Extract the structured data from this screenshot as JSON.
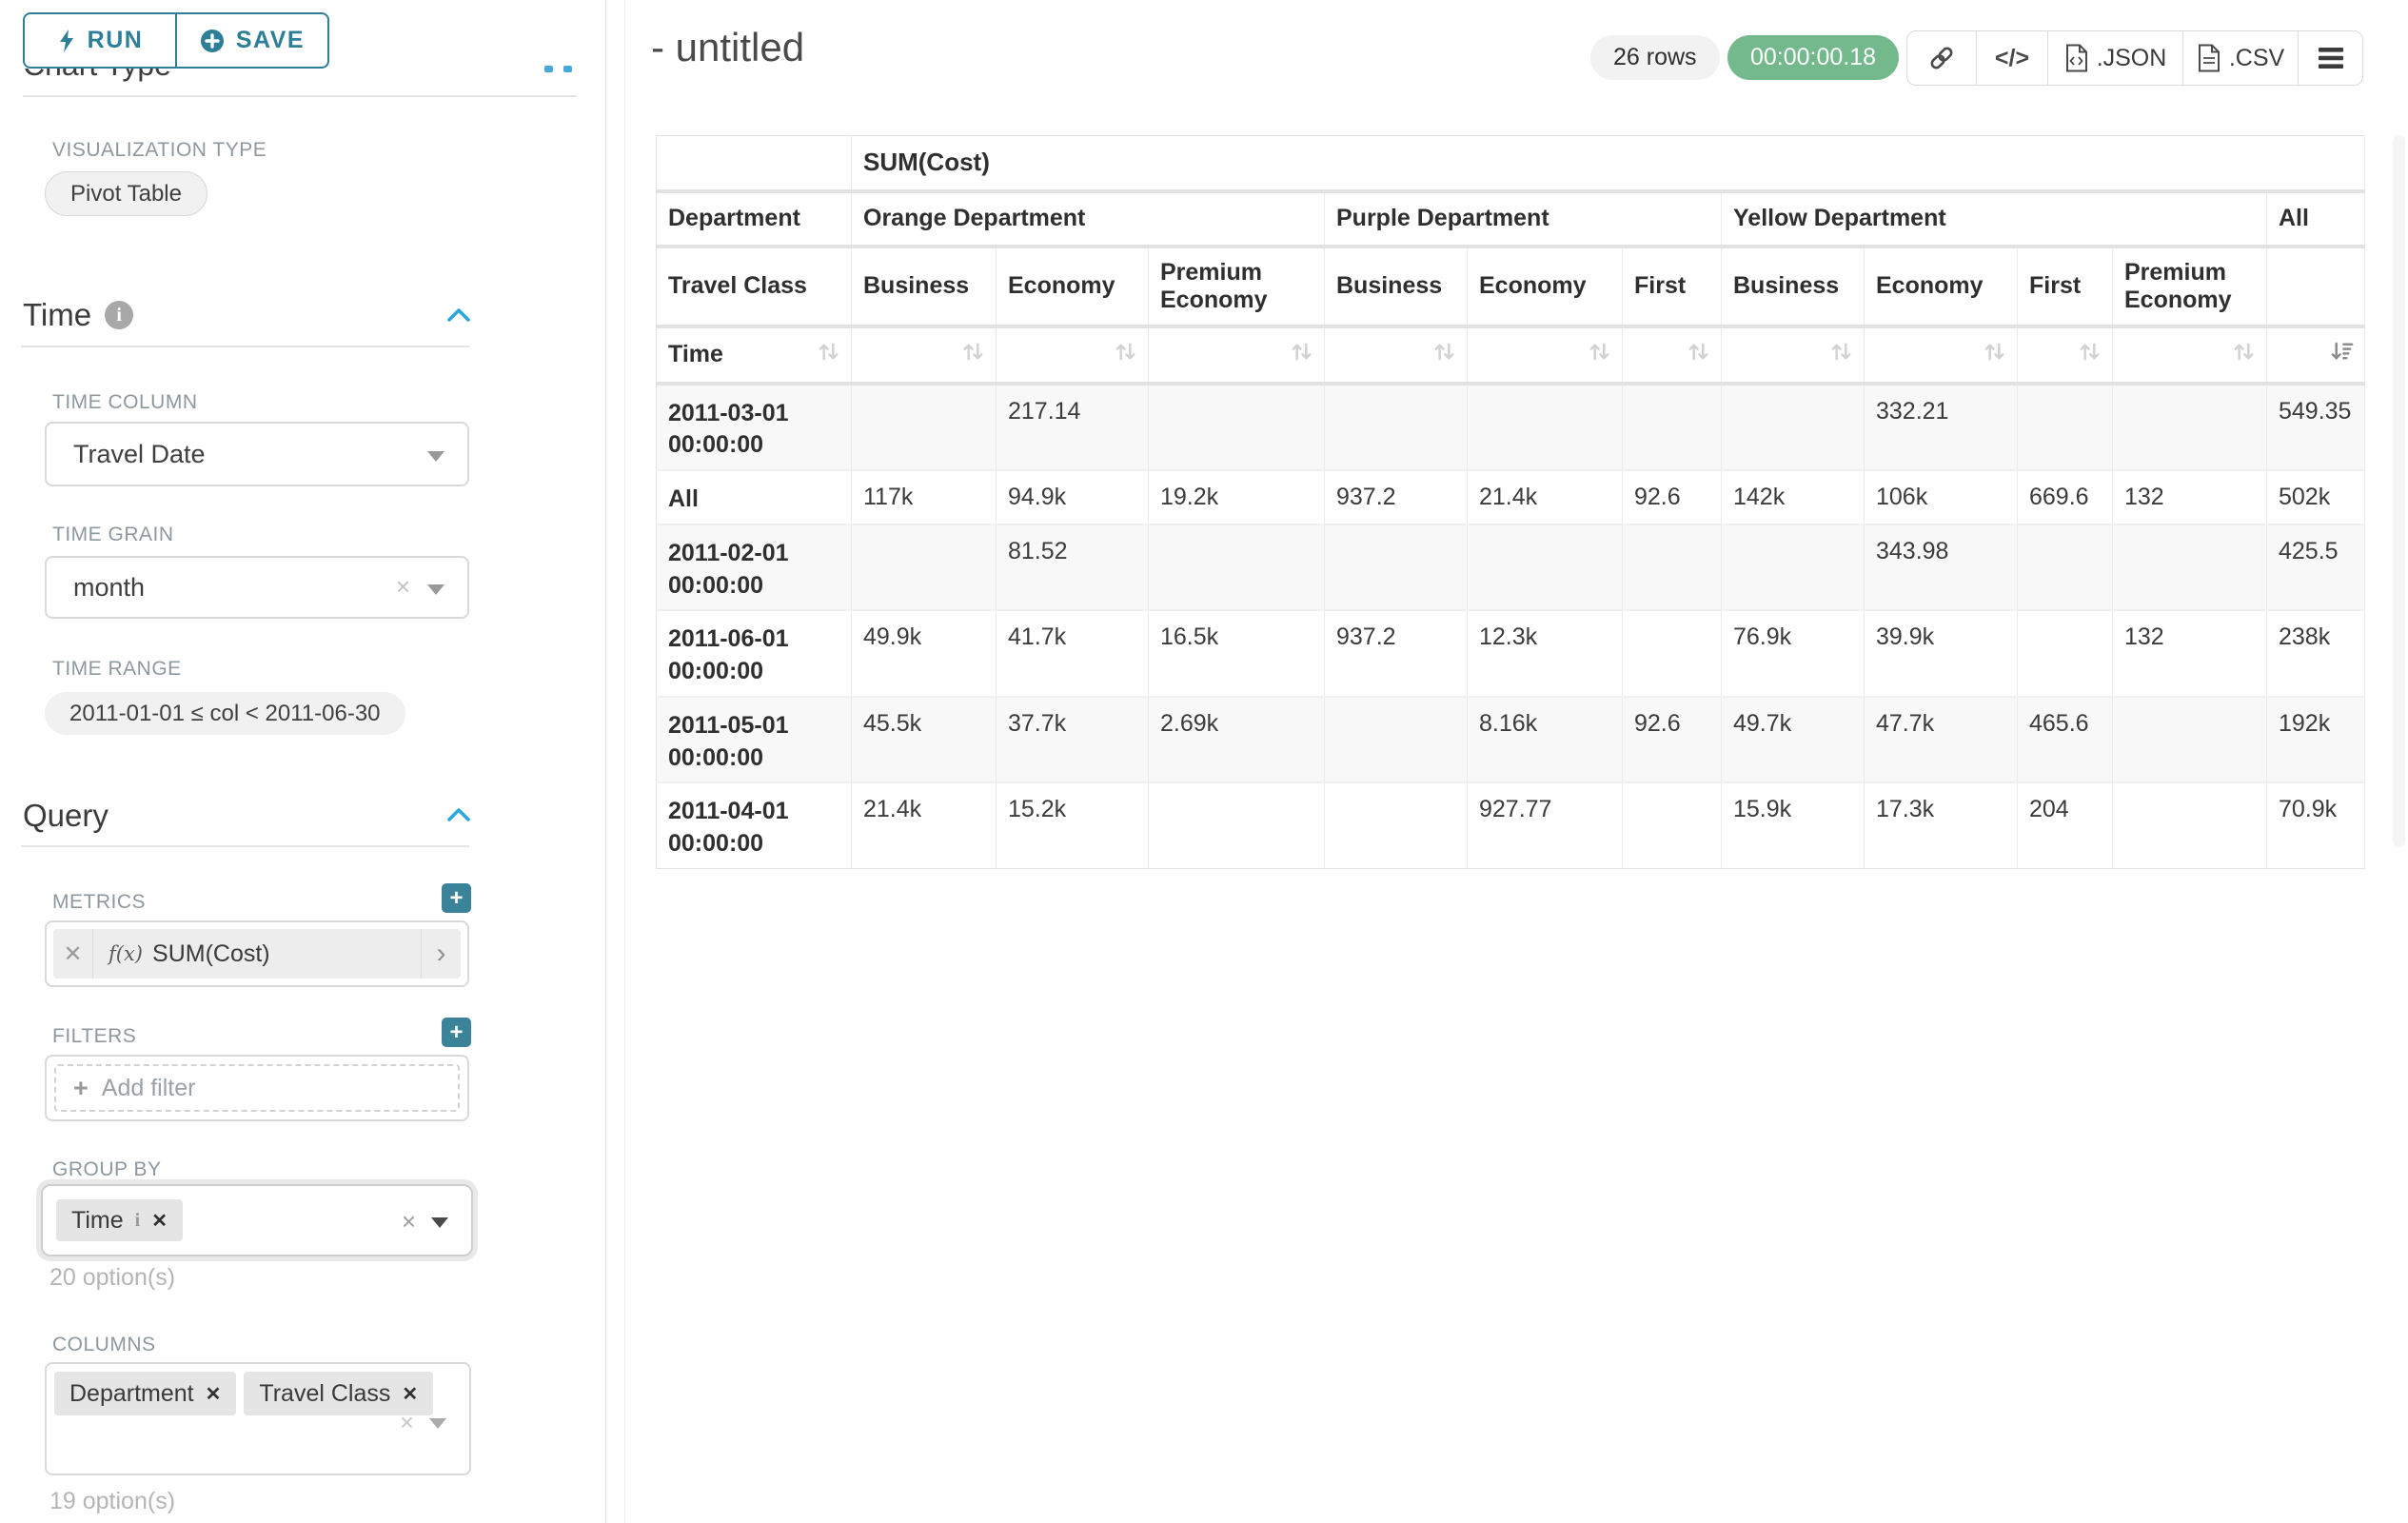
{
  "colors": {
    "accent_teal": "#2e7e97",
    "plus_button": "#3a8399",
    "chevron_blue": "#2ba7dc",
    "timer_green": "#73b98c",
    "stripe_gray": "#f8f8f8"
  },
  "sidebar": {
    "run_button": {
      "label": "RUN"
    },
    "save_button": {
      "label": "SAVE"
    },
    "chart_type_section": {
      "title": "Chart Type"
    },
    "visualization_type": {
      "label": "VISUALIZATION TYPE",
      "value": "Pivot Table"
    },
    "time_section": {
      "title": "Time"
    },
    "time_column": {
      "label": "TIME COLUMN",
      "value": "Travel Date"
    },
    "time_grain": {
      "label": "TIME GRAIN",
      "value": "month"
    },
    "time_range": {
      "label": "TIME RANGE",
      "value": "2011-01-01 ≤ col < 2011-06-30"
    },
    "query_section": {
      "title": "Query"
    },
    "metrics": {
      "label": "METRICS",
      "fx": "f(x)",
      "value": "SUM(Cost)"
    },
    "filters": {
      "label": "FILTERS",
      "placeholder": "Add filter"
    },
    "group_by": {
      "label": "GROUP BY",
      "chips": [
        "Time"
      ],
      "hint": "20 option(s)"
    },
    "columns": {
      "label": "COLUMNS",
      "chips": [
        "Department",
        "Travel Class"
      ],
      "hint": "19 option(s)"
    }
  },
  "main": {
    "title": "- untitled",
    "row_count_badge": "26 rows",
    "timer_badge": "00:00:00.18",
    "code_icon_label": "</>",
    "export_json_label": ".JSON",
    "export_csv_label": ".CSV"
  },
  "chart_data": {
    "type": "table",
    "metric_header": "SUM(Cost)",
    "row_axis_label": "Time",
    "col_axis_label_1": "Department",
    "col_axis_label_2": "Travel Class",
    "column_groups": [
      {
        "name": "Orange Department",
        "cols": [
          "Business",
          "Economy",
          "Premium Economy"
        ]
      },
      {
        "name": "Purple Department",
        "cols": [
          "Business",
          "Economy",
          "First"
        ]
      },
      {
        "name": "Yellow Department",
        "cols": [
          "Business",
          "Economy",
          "First",
          "Premium Economy"
        ]
      },
      {
        "name": "All",
        "cols": [
          ""
        ]
      }
    ],
    "rows": [
      {
        "label": "2011-03-01 00:00:00",
        "values": [
          "",
          "217.14",
          "",
          "",
          "",
          "",
          "",
          "332.21",
          "",
          "",
          "549.35"
        ]
      },
      {
        "label": "All",
        "values": [
          "117k",
          "94.9k",
          "19.2k",
          "937.2",
          "21.4k",
          "92.6",
          "142k",
          "106k",
          "669.6",
          "132",
          "502k"
        ]
      },
      {
        "label": "2011-02-01 00:00:00",
        "values": [
          "",
          "81.52",
          "",
          "",
          "",
          "",
          "",
          "343.98",
          "",
          "",
          "425.5"
        ]
      },
      {
        "label": "2011-06-01 00:00:00",
        "values": [
          "49.9k",
          "41.7k",
          "16.5k",
          "937.2",
          "12.3k",
          "",
          "76.9k",
          "39.9k",
          "",
          "132",
          "238k"
        ]
      },
      {
        "label": "2011-05-01 00:00:00",
        "values": [
          "45.5k",
          "37.7k",
          "2.69k",
          "",
          "8.16k",
          "92.6",
          "49.7k",
          "47.7k",
          "465.6",
          "",
          "192k"
        ]
      },
      {
        "label": "2011-04-01 00:00:00",
        "values": [
          "21.4k",
          "15.2k",
          "",
          "",
          "927.77",
          "",
          "15.9k",
          "17.3k",
          "204",
          "",
          "70.9k"
        ]
      }
    ]
  }
}
